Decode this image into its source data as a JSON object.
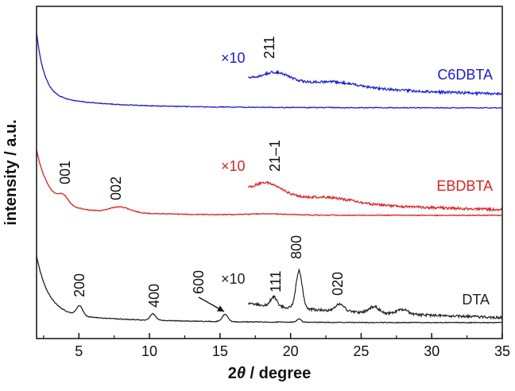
{
  "chart_data": {
    "type": "line",
    "title": "",
    "xlabel_prefix": "2",
    "xlabel_theta": "θ",
    "xlabel_suffix": " / degree",
    "ylabel": "intensity / a.u.",
    "xlim": [
      2,
      35
    ],
    "xticks": [
      5,
      10,
      15,
      20,
      25,
      30,
      35
    ],
    "yticks_shown": false,
    "series": [
      {
        "name": "C6DBTA",
        "color": "#1a1adb",
        "offset": 2.0,
        "profile": "c6",
        "magnified": {
          "label": "×10",
          "x_start": 17.0,
          "x_end": 35.0
        }
      },
      {
        "name": "EBDBTA",
        "color": "#e02020",
        "offset": 1.0,
        "profile": "eb",
        "magnified": {
          "label": "×10",
          "x_start": 17.0,
          "x_end": 35.0
        }
      },
      {
        "name": "DTA",
        "color": "#222222",
        "offset": 0.0,
        "profile": "dta",
        "magnified": {
          "label": "×10",
          "x_start": 17.0,
          "x_end": 35.0
        }
      }
    ],
    "peak_labels": [
      {
        "text": "211",
        "x": 19.0,
        "series": "C6DBTA"
      },
      {
        "text": "001",
        "x": 3.9,
        "series": "EBDBTA"
      },
      {
        "text": "002",
        "x": 7.9,
        "series": "EBDBTA"
      },
      {
        "text": "21–1",
        "x": 18.6,
        "series": "EBDBTA"
      },
      {
        "text": "200",
        "x": 5.0,
        "series": "DTA"
      },
      {
        "text": "400",
        "x": 10.2,
        "series": "DTA"
      },
      {
        "text": "600",
        "x": 14.2,
        "series": "DTA",
        "arrow_to_x": 15.4
      },
      {
        "text": "111",
        "x": 18.8,
        "series": "DTA"
      },
      {
        "text": "800",
        "x": 20.6,
        "series": "DTA"
      },
      {
        "text": "020",
        "x": 23.6,
        "series": "DTA"
      }
    ]
  }
}
